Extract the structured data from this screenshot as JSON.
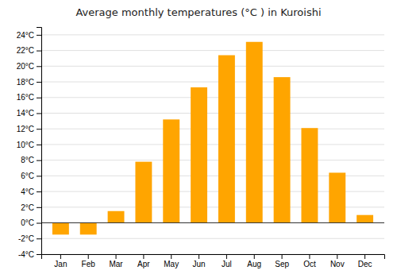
{
  "chart_data": {
    "type": "bar",
    "title": "Average monthly temperatures (°C ) in Kuroishi",
    "categories": [
      "Jan",
      "Feb",
      "Mar",
      "Apr",
      "May",
      "Jun",
      "Jul",
      "Aug",
      "Sep",
      "Oct",
      "Nov",
      "Dec"
    ],
    "values": [
      -1.5,
      -1.5,
      1.5,
      7.8,
      13.2,
      17.3,
      21.4,
      23.1,
      18.6,
      12.1,
      6.4,
      1.0
    ],
    "color": "#FFA500",
    "ylim": [
      -4,
      25
    ],
    "yticks": [
      {
        "value": -4,
        "label": "-4°C"
      },
      {
        "value": -2,
        "label": "-2°C"
      },
      {
        "value": 0,
        "label": "0°C"
      },
      {
        "value": 2,
        "label": "2°C"
      },
      {
        "value": 4,
        "label": "4°C"
      },
      {
        "value": 6,
        "label": "6°C"
      },
      {
        "value": 8,
        "label": "8°C"
      },
      {
        "value": 10,
        "label": "10°C"
      },
      {
        "value": 12,
        "label": "12°C"
      },
      {
        "value": 14,
        "label": "14°C"
      },
      {
        "value": 16,
        "label": "16°C"
      },
      {
        "value": 18,
        "label": "18°C"
      },
      {
        "value": 20,
        "label": "20°C"
      },
      {
        "value": 22,
        "label": "22°C"
      },
      {
        "value": 24,
        "label": "24°C"
      }
    ],
    "grid": true
  }
}
